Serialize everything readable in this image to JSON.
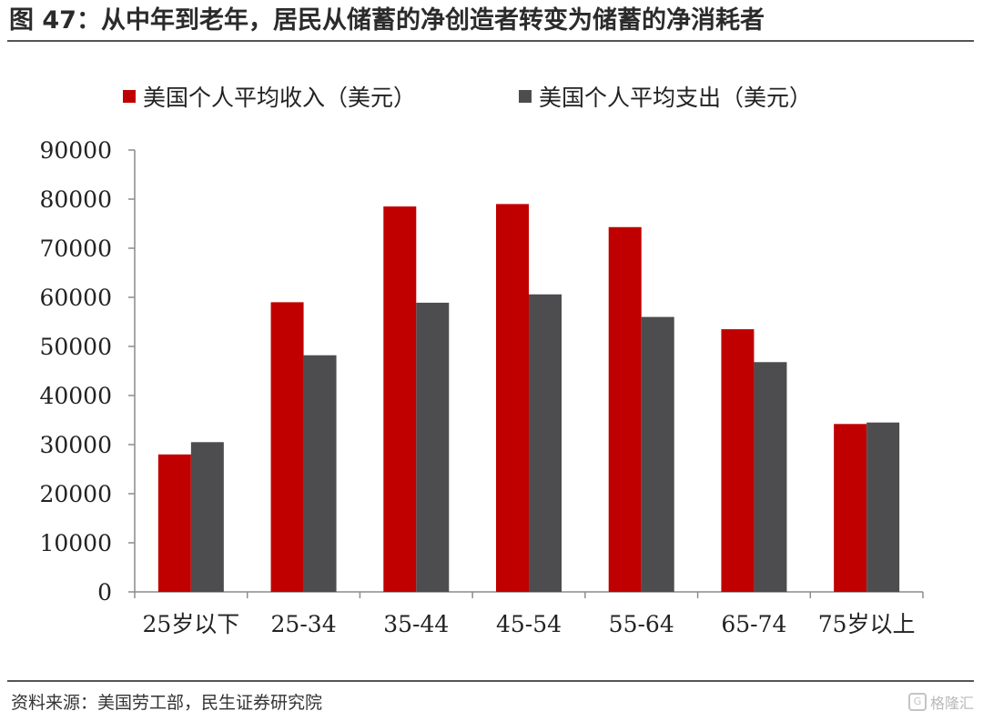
{
  "header": {
    "title": "图 47：从中年到老年，居民从储蓄的净创造者转变为储蓄的净消耗者"
  },
  "footer": {
    "source": "资料来源：美国劳工部，民生证券研究院",
    "watermark": "格隆汇"
  },
  "chart_data": {
    "type": "bar",
    "title": "",
    "xlabel": "",
    "ylabel": "",
    "ylim": [
      0,
      90000
    ],
    "yticks": [
      0,
      10000,
      20000,
      30000,
      40000,
      50000,
      60000,
      70000,
      80000,
      90000
    ],
    "categories": [
      "25岁以下",
      "25-34",
      "35-44",
      "45-54",
      "55-64",
      "65-74",
      "75岁以上"
    ],
    "series": [
      {
        "name": "美国个人平均收入（美元）",
        "color": "#c00000",
        "values": [
          28000,
          59000,
          78500,
          79000,
          74300,
          53500,
          34200
        ]
      },
      {
        "name": "美国个人平均支出（美元）",
        "color": "#4d4d4f",
        "values": [
          30500,
          48200,
          58900,
          60600,
          56000,
          46800,
          34500
        ]
      }
    ],
    "legend": "top",
    "grid": false
  }
}
